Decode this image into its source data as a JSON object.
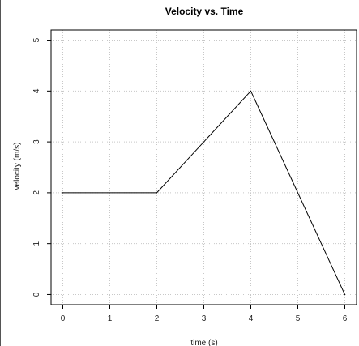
{
  "chart_data": {
    "type": "line",
    "title": "Velocity vs. Time",
    "xlabel": "time (s)",
    "ylabel": "velocity (m/s)",
    "xlim": [
      -0.25,
      6.25
    ],
    "ylim": [
      -0.2,
      5.2
    ],
    "xticks": [
      0,
      1,
      2,
      3,
      4,
      5,
      6
    ],
    "yticks": [
      0,
      1,
      2,
      3,
      4,
      5
    ],
    "grid": true,
    "series": [
      {
        "x": [
          0,
          2,
          4,
          6
        ],
        "y": [
          2,
          2,
          4,
          0
        ]
      }
    ],
    "colors": {
      "line": "#000000",
      "grid": "#c8c8c8",
      "axis": "#000000"
    }
  }
}
